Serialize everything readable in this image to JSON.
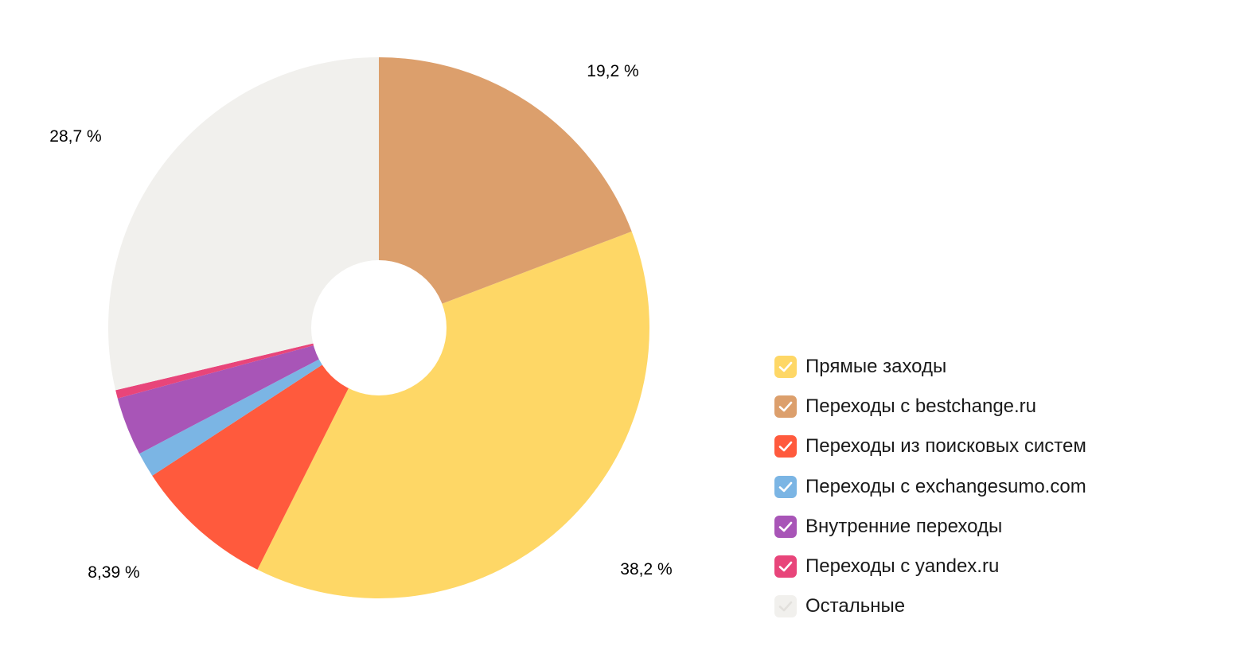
{
  "chart_data": {
    "type": "pie",
    "donut": true,
    "legend_position": "right",
    "series": [
      {
        "name": "Прямые заходы",
        "value": 38.2,
        "color": "#FED766",
        "label": "38,2 %"
      },
      {
        "name": "Переходы из поисковых систем",
        "value": 8.39,
        "color": "#FF5A3D",
        "label": "8,39 %"
      },
      {
        "name": "Переходы с exchangesumo.com",
        "value": 1.5,
        "color": "#7BB5E4",
        "label": ""
      },
      {
        "name": "Внутренние переходы",
        "value": 3.5,
        "color": "#A855B7",
        "label": ""
      },
      {
        "name": "Переходы с yandex.ru",
        "value": 0.5,
        "color": "#E8457A",
        "label": ""
      },
      {
        "name": "Остальные",
        "value": 28.7,
        "color": "#F1F0ED",
        "label": "28,7 %"
      },
      {
        "name": "Переходы с bestchange.ru",
        "value": 19.2,
        "color": "#DC9F6C",
        "label": "19,2 %"
      }
    ],
    "legend": [
      {
        "name": "Прямые заходы",
        "color": "#FED766",
        "checked": true
      },
      {
        "name": "Переходы с bestchange.ru",
        "color": "#DC9F6C",
        "checked": true
      },
      {
        "name": "Переходы из поисковых систем",
        "color": "#FF5A3D",
        "checked": true
      },
      {
        "name": "Переходы с exchangesumo.com",
        "color": "#7BB5E4",
        "checked": true
      },
      {
        "name": "Внутренние переходы",
        "color": "#A855B7",
        "checked": true
      },
      {
        "name": "Переходы с yandex.ru",
        "color": "#E8457A",
        "checked": true
      },
      {
        "name": "Остальные",
        "color": "#F1F0ED",
        "checked": true
      }
    ]
  }
}
